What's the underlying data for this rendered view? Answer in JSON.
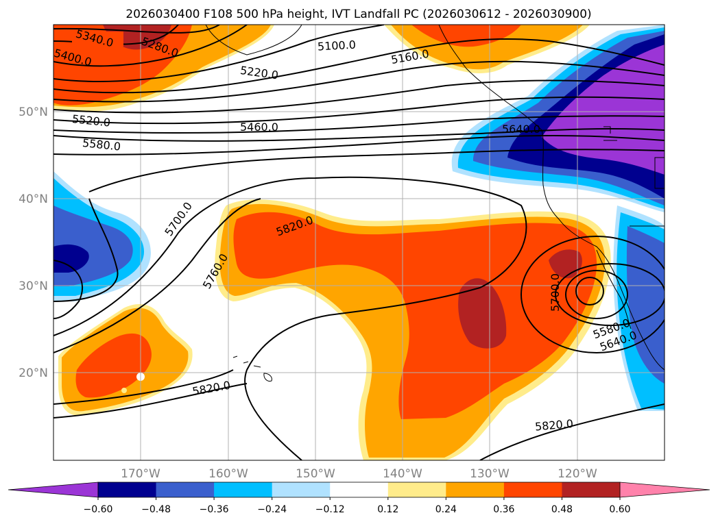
{
  "title": "2026030400 F108 500 hPa height, IVT Landfall PC (2026030612 - 2026030900)",
  "map": {
    "lat_labels": [
      "50°N",
      "40°N",
      "30°N",
      "20°N"
    ],
    "lon_labels": [
      "170°W",
      "160°W",
      "150°W",
      "140°W",
      "130°W",
      "120°W"
    ]
  },
  "contour_labels": [
    "5340.0",
    "5280.0",
    "5400.0",
    "5100.0",
    "5160.0",
    "5220.0",
    "5520.0",
    "5460.0",
    "5640.0",
    "5580.0",
    "5700.0",
    "5820.0",
    "5760.0",
    "5700.0",
    "5580.0",
    "5640.0",
    "5820.0",
    "5820.0"
  ],
  "colorbar": {
    "ticks": [
      "−0.60",
      "−0.48",
      "−0.36",
      "−0.24",
      "−0.12",
      "0.12",
      "0.24",
      "0.36",
      "0.48",
      "0.60"
    ],
    "colors": [
      "#9b35d6",
      "#00008f",
      "#3a5fcd",
      "#00bfff",
      "#b0e2ff",
      "#ffffff",
      "#ffec8b",
      "#ffa500",
      "#ff4500",
      "#b22222",
      "#ff82ab"
    ]
  },
  "colors": {
    "neg_extreme": "#9b35d6",
    "neg_strong": "#00008f",
    "neg_mid": "#3a5fcd",
    "neg_weak": "#00bfff",
    "neg_faint": "#b0e2ff",
    "pos_faint": "#ffec8b",
    "pos_weak": "#ffa500",
    "pos_mid": "#ff4500",
    "pos_strong": "#b22222",
    "pos_extreme": "#ff82ab"
  }
}
